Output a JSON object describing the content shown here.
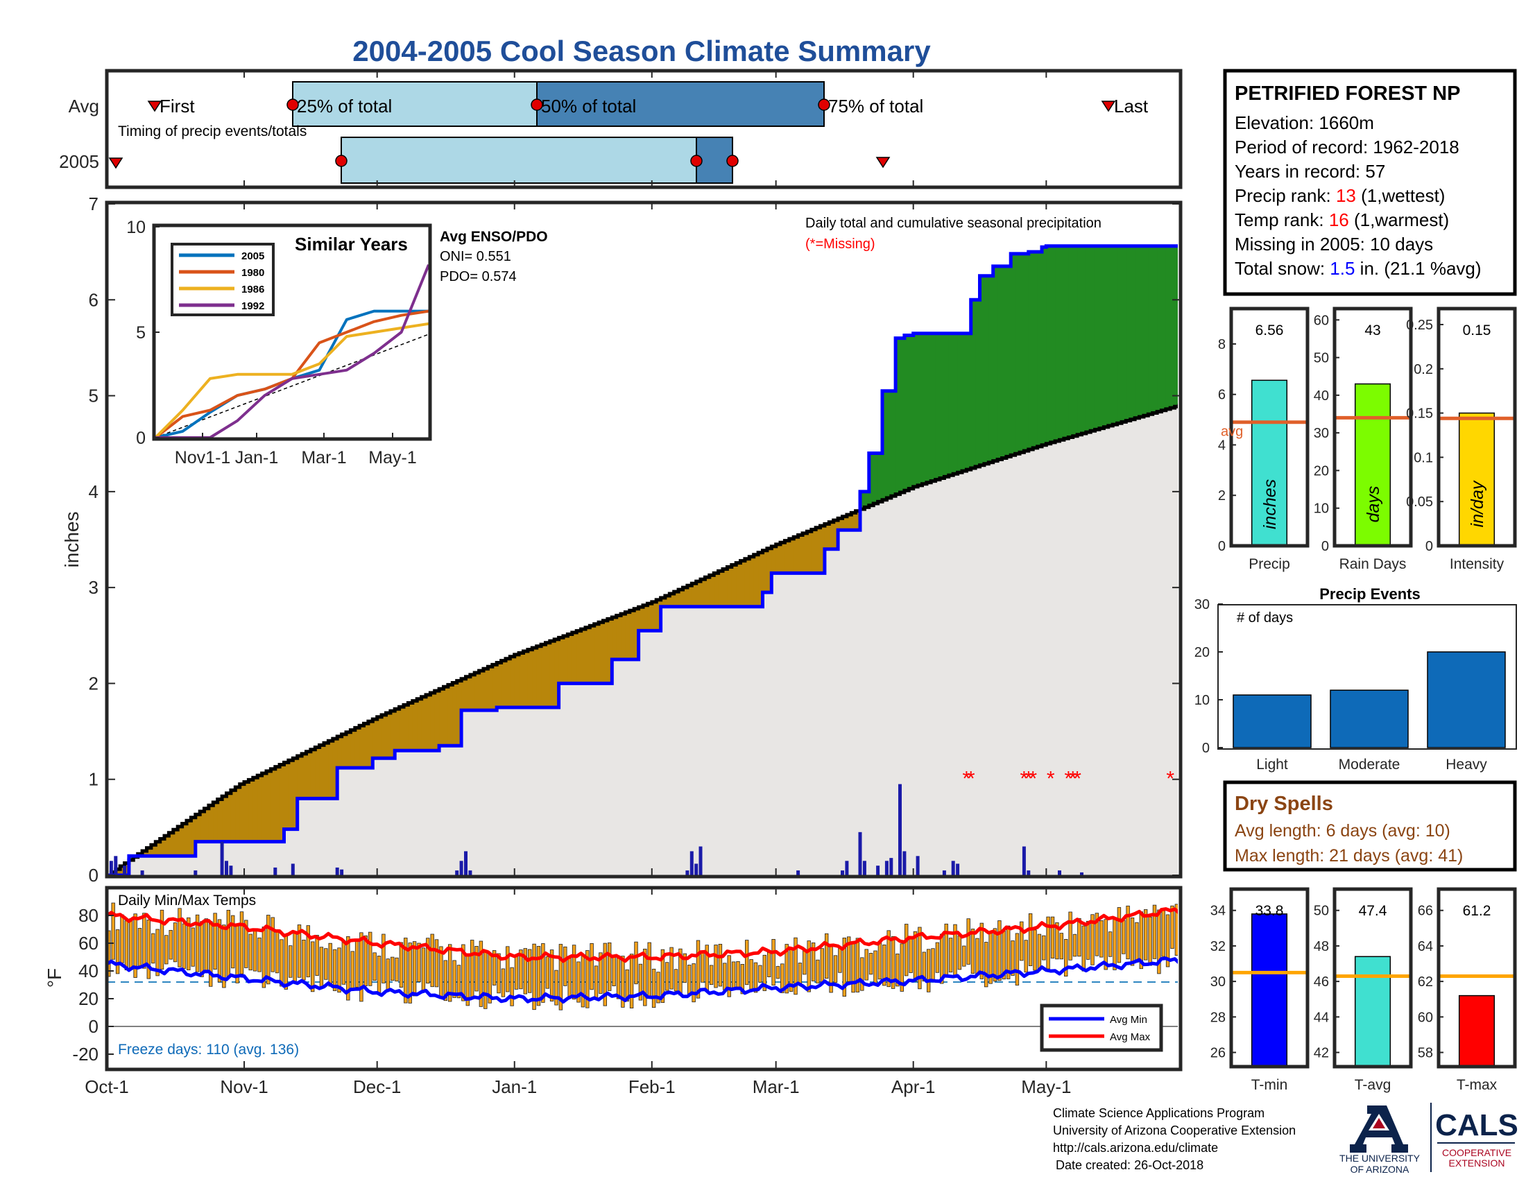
{
  "title": "2004-2005 Cool Season Climate Summary",
  "colors": {
    "title": "#1f4e99",
    "lightblue": "#add8e6",
    "steelblue": "#4682b4",
    "green": "#228b22",
    "brown": "#b8860b",
    "cumfill": "#e8e6e4",
    "blue": "#0000ff",
    "red": "#ff0000",
    "orange": "#f5a21b",
    "avgline": "#e0602a",
    "barblue": "#0e6ab8"
  },
  "x_ticks": [
    "Oct-1",
    "Nov-1",
    "Dec-1",
    "Jan-1",
    "Feb-1",
    "Mar-1",
    "Apr-1",
    "May-1"
  ],
  "timing": {
    "row_avg": "Avg",
    "row_year": "2005",
    "caption": "Timing of precip events/totals",
    "first": "First",
    "p25": "25% of total",
    "p50": "50% of total",
    "p75": "75% of total",
    "last": "Last"
  },
  "station": {
    "name": "PETRIFIED FOREST NP",
    "elevation": "Elevation: 1660m",
    "period": "Period of record: 1962-2018",
    "years": "Years in record: 57",
    "precip_rank_label": "Precip rank: ",
    "precip_rank": "13",
    "precip_rank_note": " (1,wettest)",
    "temp_rank_label": "Temp rank: ",
    "temp_rank": "16",
    "temp_rank_note": " (1,warmest)",
    "missing": "Missing in 2005: 10 days",
    "snow_label": "Total snow: ",
    "snow_value": "1.5",
    "snow_note": " in. (21.1 %avg)"
  },
  "precip_chart": {
    "ylabel": "inches",
    "y_ticks": [
      "0",
      "1",
      "2",
      "3",
      "4",
      "5",
      "6",
      "7"
    ],
    "note": "Daily total and cumulative seasonal precipitation",
    "missing_note": "(*=Missing)",
    "enso_title": "Avg ENSO/PDO",
    "oni": "ONI= 0.551",
    "pdo": "PDO= 0.574"
  },
  "similar_years": {
    "title": "Similar Years",
    "y_ticks": [
      "0",
      "5",
      "10"
    ],
    "x_ticks": [
      "Nov1-1",
      "Jan-1",
      "Mar-1",
      "May-1"
    ],
    "legend": [
      "2005",
      "1980",
      "1986",
      "1992"
    ]
  },
  "side_bars": {
    "precip": {
      "label": "Precip",
      "value_text": "6.56",
      "unit": "inches",
      "avg_label": "avg",
      "ticks": [
        "0",
        "2",
        "4",
        "6",
        "8"
      ]
    },
    "raindays": {
      "label": "Rain Days",
      "value_text": "43",
      "unit": "days",
      "ticks": [
        "0",
        "10",
        "20",
        "30",
        "40",
        "50",
        "60"
      ]
    },
    "intensity": {
      "label": "Intensity",
      "value_text": "0.15",
      "unit": "in/day",
      "ticks": [
        "0",
        "0.05",
        "0.1",
        "0.15",
        "0.2",
        "0.25"
      ]
    }
  },
  "events": {
    "title": "Precip Events",
    "ylabel": "# of days",
    "y_ticks": [
      "0",
      "10",
      "20",
      "30"
    ],
    "categories": [
      "Light",
      "Moderate",
      "Heavy"
    ]
  },
  "dry_spells": {
    "title": "Dry Spells",
    "avg_length": "Avg length: 6 days (avg: 10)",
    "max_length": "Max length: 21 days (avg: 41)"
  },
  "temps": {
    "title": "Daily Min/Max Temps",
    "ylabel": "°F",
    "y_ticks": [
      "-20",
      "0",
      "20",
      "40",
      "60",
      "80"
    ],
    "freeze": "Freeze days: 110 (avg. 136)",
    "legend_min": "Avg Min",
    "legend_max": "Avg Max"
  },
  "temp_bars": {
    "tmin": {
      "label": "T-min",
      "value_text": "33.8",
      "ticks": [
        "26",
        "28",
        "30",
        "32",
        "34"
      ]
    },
    "tavg": {
      "label": "T-avg",
      "value_text": "47.4",
      "ticks": [
        "42",
        "44",
        "46",
        "48",
        "50"
      ]
    },
    "tmax": {
      "label": "T-max",
      "value_text": "61.2",
      "ticks": [
        "58",
        "60",
        "62",
        "64",
        "66"
      ]
    }
  },
  "footer": {
    "line1": "Climate Science Applications Program",
    "line2": "University of Arizona Cooperative Extension",
    "line3": "http://cals.arizona.edu/climate",
    "line4": "Date created: 26-Oct-2018",
    "ua_text1": "THE UNIVERSITY",
    "ua_text2": "OF ARIZONA",
    "cals": "CALS",
    "cals_sub1": "COOPERATIVE",
    "cals_sub2": "EXTENSION"
  },
  "chart_data": [
    {
      "type": "area",
      "title": "Daily total and cumulative seasonal precipitation",
      "ylabel": "inches",
      "ylim": [
        0,
        7
      ],
      "x_ticks": [
        "Oct-1",
        "Nov-1",
        "Dec-1",
        "Jan-1",
        "Feb-1",
        "Mar-1",
        "Apr-1",
        "May-1"
      ],
      "series": [
        {
          "name": "cumulative 2005",
          "x_day": [
            0,
            5,
            15,
            20,
            30,
            40,
            43,
            52,
            56,
            60,
            65,
            75,
            80,
            88,
            102,
            114,
            120,
            125,
            128,
            134,
            148,
            150,
            162,
            165,
            170,
            172,
            175,
            178,
            180,
            182,
            195,
            197,
            200,
            204,
            208,
            211,
            212,
            242
          ],
          "values": [
            0,
            0.2,
            0.2,
            0.35,
            0.35,
            0.48,
            0.8,
            1.12,
            1.12,
            1.22,
            1.3,
            1.35,
            1.72,
            1.75,
            2.0,
            2.25,
            2.55,
            2.8,
            2.8,
            2.8,
            2.95,
            3.15,
            3.4,
            3.6,
            4.0,
            4.4,
            5.05,
            5.6,
            5.63,
            5.65,
            6.0,
            6.25,
            6.35,
            6.48,
            6.5,
            6.55,
            6.56,
            6.56
          ]
        },
        {
          "name": "cumulative average",
          "x_day": [
            0,
            30,
            61,
            92,
            123,
            151,
            182,
            212,
            242
          ],
          "values": [
            0,
            0.95,
            1.65,
            2.3,
            2.85,
            3.45,
            4.05,
            4.5,
            4.9
          ]
        }
      ],
      "daily_totals": {
        "x_day": [
          1,
          2,
          4,
          8,
          20,
          26,
          27,
          28,
          38,
          42,
          52,
          53,
          79,
          80,
          81,
          82,
          131,
          132,
          133,
          134,
          156,
          166,
          167,
          170,
          171,
          174,
          176,
          177,
          179,
          180,
          183,
          189,
          191,
          192,
          207,
          208,
          215,
          220
        ],
        "values": [
          0.15,
          0.2,
          0.1,
          0.05,
          0.05,
          0.35,
          0.15,
          0.1,
          0.08,
          0.12,
          0.08,
          0.06,
          0.05,
          0.15,
          0.25,
          0.05,
          0.05,
          0.25,
          0.12,
          0.3,
          0.05,
          0.05,
          0.15,
          0.45,
          0.15,
          0.1,
          0.15,
          0.18,
          0.95,
          0.25,
          0.2,
          0.05,
          0.15,
          0.12,
          0.3,
          0.05,
          0.05,
          0.03
        ]
      },
      "missing_days": [
        194,
        195,
        207,
        208,
        209,
        213,
        217,
        218,
        219,
        240
      ]
    },
    {
      "type": "line",
      "title": "Similar Years",
      "ylim": [
        0,
        10
      ],
      "x_ticks": [
        "Nov1-1",
        "Jan-1",
        "Mar-1",
        "May-1"
      ],
      "series": [
        {
          "name": "2005",
          "values": [
            0,
            0.3,
            1.2,
            2.0,
            2.3,
            2.8,
            3.2,
            5.6,
            6.0,
            6.0,
            6.0
          ]
        },
        {
          "name": "1980",
          "values": [
            0,
            1.0,
            1.3,
            2.0,
            2.3,
            2.8,
            4.5,
            5.0,
            5.5,
            5.8,
            6.0
          ]
        },
        {
          "name": "1986",
          "values": [
            0,
            1.3,
            2.8,
            3.0,
            3.0,
            3.0,
            3.5,
            4.8,
            5.0,
            5.2,
            5.4
          ]
        },
        {
          "name": "1992",
          "values": [
            0,
            0,
            0,
            0.8,
            2.0,
            2.8,
            3.0,
            3.2,
            4.0,
            5.0,
            8.2
          ]
        }
      ]
    },
    {
      "type": "bar",
      "title": "Precip Events",
      "ylabel": "# of days",
      "categories": [
        "Light",
        "Moderate",
        "Heavy"
      ],
      "values": [
        11,
        12,
        20
      ],
      "ylim": [
        0,
        30
      ]
    },
    {
      "type": "bar",
      "categories": [
        "Precip",
        "Rain Days",
        "Intensity"
      ],
      "values": [
        6.56,
        43,
        0.15
      ],
      "averages": [
        4.9,
        34,
        0.144
      ]
    },
    {
      "type": "bar",
      "categories": [
        "T-min",
        "T-avg",
        "T-max"
      ],
      "values": [
        33.8,
        47.4,
        61.2
      ],
      "averages": [
        30.5,
        46.3,
        62.3
      ]
    },
    {
      "type": "line",
      "title": "Daily Min/Max Temps",
      "ylabel": "°F",
      "ylim": [
        -25,
        92
      ],
      "series": [
        {
          "name": "Avg Max",
          "x_day": [
            0,
            30,
            61,
            92,
            123,
            151,
            182,
            212,
            242
          ],
          "values": [
            80,
            72,
            60,
            50,
            50,
            54,
            64,
            72,
            84
          ]
        },
        {
          "name": "Avg Min",
          "x_day": [
            0,
            30,
            61,
            92,
            123,
            151,
            182,
            212,
            242
          ],
          "values": [
            45,
            35,
            25,
            20,
            22,
            28,
            33,
            40,
            48
          ]
        }
      ],
      "freeze_line": 32
    }
  ]
}
